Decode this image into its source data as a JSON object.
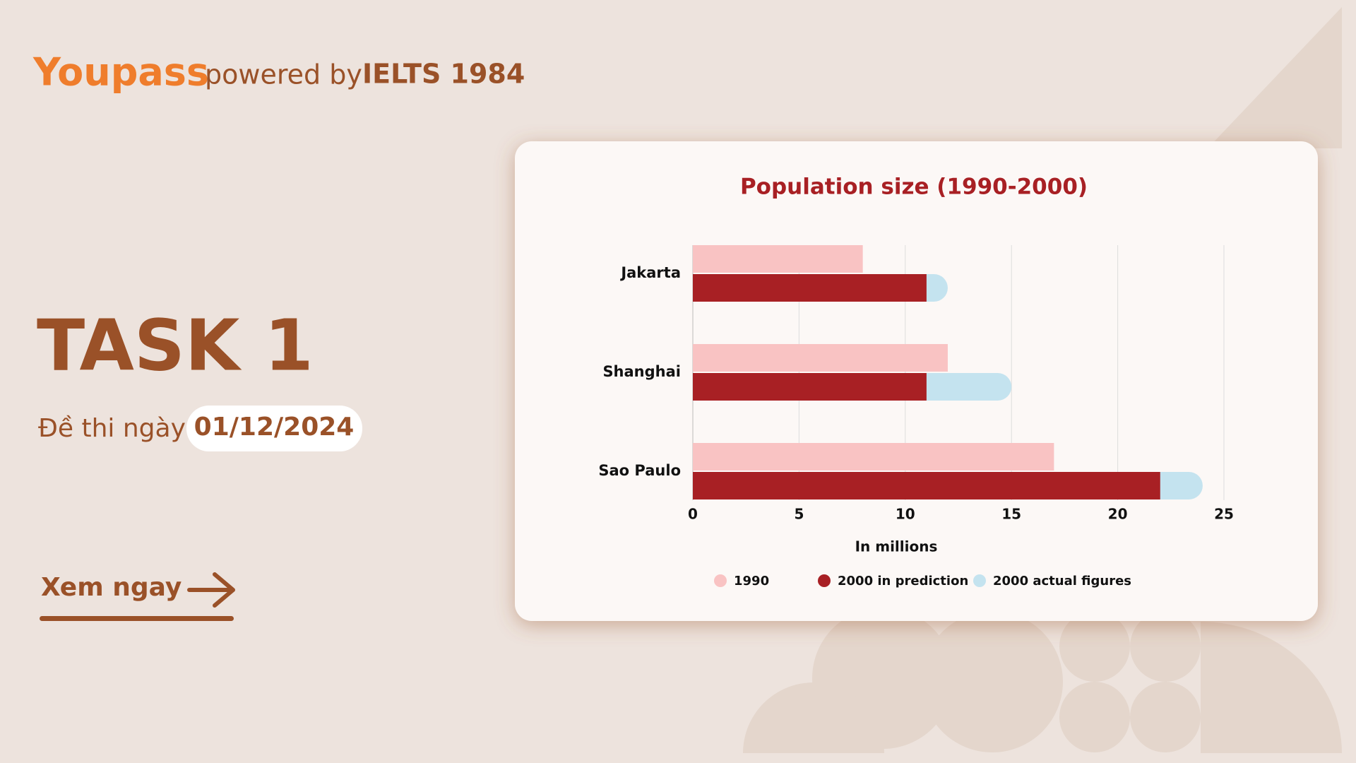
{
  "header": {
    "logo": "Youpass",
    "powered_by": "powered by",
    "brand": "IELTS 1984"
  },
  "task": {
    "title": "TASK 1",
    "date_label": "Đề thi ngày",
    "date": "01/12/2024"
  },
  "cta": {
    "label": "Xem ngay"
  },
  "chart_data": {
    "type": "bar",
    "title": "Population size (1990-2000)",
    "categories": [
      "Jakarta",
      "Shanghai",
      "Sao Paulo"
    ],
    "series": [
      {
        "name": "1990",
        "color": "#f9c3c3",
        "values": [
          8,
          12,
          17
        ]
      },
      {
        "name": "2000 in prediction",
        "color": "#a82024",
        "values": [
          11,
          11,
          22
        ]
      },
      {
        "name": "2000 actual figures",
        "color": "#c4e3ef",
        "values": [
          12,
          15,
          24
        ]
      }
    ],
    "xlabel": "In millions",
    "xlim": [
      0,
      25
    ],
    "xticks": [
      0,
      5,
      10,
      15,
      20,
      25
    ],
    "grid": true
  }
}
